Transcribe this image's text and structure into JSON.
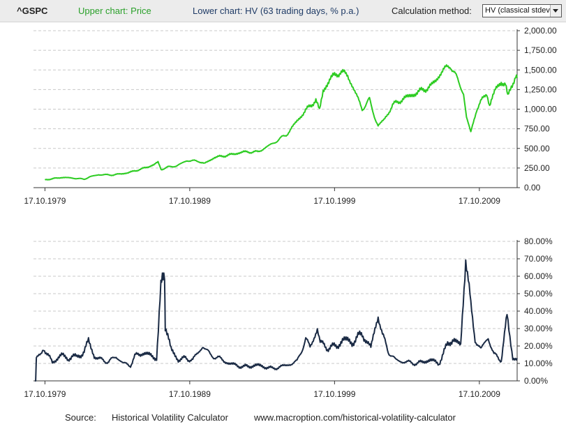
{
  "header": {
    "ticker": "^GSPC",
    "upper_label": "Upper chart: Price",
    "lower_label": "Lower chart: HV (63 trading days, % p.a.)",
    "calc_label": "Calculation method:",
    "calc_value": "HV (classical stdev)"
  },
  "footer": {
    "source_label": "Source:",
    "source_name": "Historical Volatility Calculator",
    "source_url": "www.macroption.com/historical-volatility-calculator"
  },
  "colors": {
    "price": "#2dcc22",
    "volatility": "#1a2a44",
    "grid": "#c8c8c8",
    "axis": "#333333"
  },
  "chart_data": [
    {
      "type": "line",
      "title": "Upper chart: Price",
      "x_tick_labels": [
        "17.10.1979",
        "17.10.1989",
        "17.10.1999",
        "17.10.2009"
      ],
      "x_tick_years": [
        1979.79,
        1989.79,
        1999.79,
        2009.79
      ],
      "xlim": [
        1979.0,
        2012.4
      ],
      "y_tick_labels": [
        "0.00",
        "250.00",
        "500.00",
        "750.00",
        "1,000.00",
        "1,250.00",
        "1,500.00",
        "1,750.00",
        "2,000.00"
      ],
      "ylim": [
        0,
        2000
      ],
      "grid": true,
      "series": [
        {
          "points": [
            [
              1979.79,
              101
            ],
            [
              1980.3,
              112
            ],
            [
              1980.9,
              130
            ],
            [
              1981.5,
              125
            ],
            [
              1982.5,
              108
            ],
            [
              1982.9,
              138
            ],
            [
              1983.5,
              165
            ],
            [
              1984.5,
              162
            ],
            [
              1985.5,
              188
            ],
            [
              1986.5,
              240
            ],
            [
              1987.3,
              290
            ],
            [
              1987.6,
              325
            ],
            [
              1987.82,
              232
            ],
            [
              1988.3,
              262
            ],
            [
              1988.9,
              278
            ],
            [
              1989.6,
              345
            ],
            [
              1990.4,
              338
            ],
            [
              1990.8,
              305
            ],
            [
              1991.5,
              385
            ],
            [
              1992.5,
              415
            ],
            [
              1993.5,
              455
            ],
            [
              1994.5,
              455
            ],
            [
              1995.5,
              560
            ],
            [
              1996.5,
              680
            ],
            [
              1997.5,
              920
            ],
            [
              1998.5,
              1120
            ],
            [
              1998.75,
              980
            ],
            [
              1999.0,
              1230
            ],
            [
              1999.5,
              1390
            ],
            [
              2000.2,
              1480
            ],
            [
              2000.7,
              1430
            ],
            [
              2001.3,
              1180
            ],
            [
              2001.7,
              1000
            ],
            [
              2002.2,
              1120
            ],
            [
              2002.6,
              880
            ],
            [
              2002.8,
              790
            ],
            [
              2003.2,
              860
            ],
            [
              2003.8,
              1050
            ],
            [
              2004.5,
              1130
            ],
            [
              2005.5,
              1210
            ],
            [
              2006.5,
              1300
            ],
            [
              2007.3,
              1500
            ],
            [
              2007.8,
              1560
            ],
            [
              2008.3,
              1370
            ],
            [
              2008.7,
              1200
            ],
            [
              2008.9,
              900
            ],
            [
              2009.2,
              700
            ],
            [
              2009.6,
              1000
            ],
            [
              2010.0,
              1120
            ],
            [
              2010.3,
              1210
            ],
            [
              2010.5,
              1050
            ],
            [
              2010.9,
              1250
            ],
            [
              2011.3,
              1350
            ],
            [
              2011.6,
              1310
            ],
            [
              2011.75,
              1150
            ],
            [
              2012.0,
              1300
            ],
            [
              2012.3,
              1420
            ],
            [
              2012.4,
              1400
            ]
          ]
        }
      ]
    },
    {
      "type": "line",
      "title": "Lower chart: HV (63 trading days, % p.a.)",
      "x_tick_labels": [
        "17.10.1979",
        "17.10.1989",
        "17.10.1999",
        "17.10.2009"
      ],
      "x_tick_years": [
        1979.79,
        1989.79,
        1999.79,
        2009.79
      ],
      "xlim": [
        1979.0,
        2012.4
      ],
      "y_tick_labels": [
        "0.00%",
        "10.00%",
        "20.00%",
        "30.00%",
        "40.00%",
        "50.00%",
        "60.00%",
        "70.00%",
        "80.00%"
      ],
      "ylim": [
        0,
        80
      ],
      "grid": true,
      "series": [
        {
          "points": [
            [
              1979.1,
              0
            ],
            [
              1979.15,
              0
            ],
            [
              1979.2,
              13
            ],
            [
              1979.5,
              15
            ],
            [
              1979.7,
              19
            ],
            [
              1980.0,
              15
            ],
            [
              1980.3,
              10
            ],
            [
              1980.6,
              13
            ],
            [
              1981.0,
              15
            ],
            [
              1981.4,
              12
            ],
            [
              1981.7,
              15
            ],
            [
              1982.0,
              13
            ],
            [
              1982.5,
              17
            ],
            [
              1982.8,
              23
            ],
            [
              1983.2,
              14
            ],
            [
              1983.7,
              12
            ],
            [
              1984.2,
              11
            ],
            [
              1984.7,
              14
            ],
            [
              1985.2,
              10
            ],
            [
              1985.7,
              9
            ],
            [
              1986.0,
              14
            ],
            [
              1986.5,
              16
            ],
            [
              1987.0,
              15
            ],
            [
              1987.5,
              13
            ],
            [
              1987.8,
              52
            ],
            [
              1987.9,
              58
            ],
            [
              1988.05,
              64
            ],
            [
              1988.1,
              32
            ],
            [
              1988.5,
              18
            ],
            [
              1989.0,
              12
            ],
            [
              1989.5,
              13
            ],
            [
              1990.0,
              12
            ],
            [
              1990.7,
              20
            ],
            [
              1991.2,
              15
            ],
            [
              1991.8,
              13
            ],
            [
              1992.5,
              10
            ],
            [
              1993.5,
              8
            ],
            [
              1994.5,
              9
            ],
            [
              1995.5,
              7
            ],
            [
              1996.5,
              9
            ],
            [
              1997.2,
              11
            ],
            [
              1997.8,
              24
            ],
            [
              1998.1,
              19
            ],
            [
              1998.6,
              30
            ],
            [
              1998.8,
              22
            ],
            [
              1999.3,
              19
            ],
            [
              2000.0,
              20
            ],
            [
              2000.4,
              24
            ],
            [
              2001.0,
              22
            ],
            [
              2001.7,
              27
            ],
            [
              2002.3,
              19
            ],
            [
              2002.8,
              38
            ],
            [
              2003.1,
              26
            ],
            [
              2003.5,
              17
            ],
            [
              2004.0,
              12
            ],
            [
              2004.5,
              11
            ],
            [
              2005.5,
              10
            ],
            [
              2006.4,
              12
            ],
            [
              2007.0,
              10
            ],
            [
              2007.6,
              21
            ],
            [
              2008.0,
              24
            ],
            [
              2008.5,
              20
            ],
            [
              2008.85,
              72
            ],
            [
              2009.2,
              42
            ],
            [
              2009.5,
              24
            ],
            [
              2009.9,
              18
            ],
            [
              2010.4,
              25
            ],
            [
              2010.8,
              15
            ],
            [
              2011.3,
              12
            ],
            [
              2011.7,
              37
            ],
            [
              2011.9,
              25
            ],
            [
              2012.1,
              13
            ],
            [
              2012.4,
              13
            ]
          ]
        }
      ]
    }
  ]
}
